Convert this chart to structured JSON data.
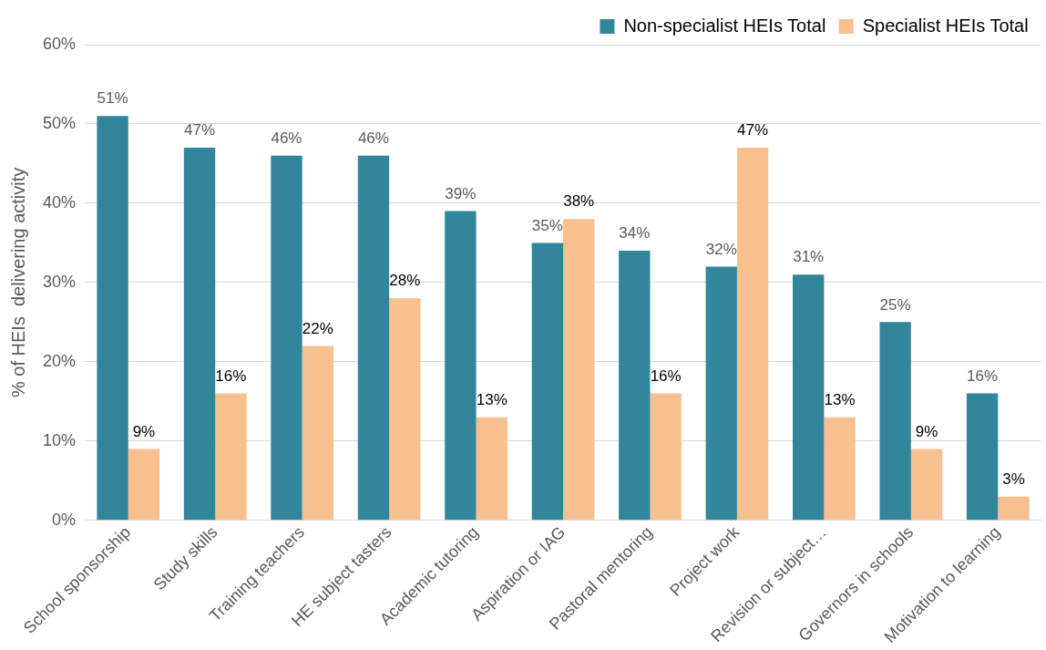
{
  "chart_data": {
    "type": "bar",
    "ylabel": "% of HEIs  delivering activity",
    "categories": [
      "School sponsorship",
      "Study skills",
      "Training teachers",
      "HE subject tasters",
      "Academic tutoring",
      "Aspiration or IAG",
      "Pastoral mentoring",
      "Project work",
      "Revision or subject…",
      "Governors in schools",
      "Motivation to learning"
    ],
    "series": [
      {
        "name": "Non-specialist HEIs Total",
        "color": "#31869b",
        "values": [
          51,
          47,
          46,
          46,
          39,
          35,
          34,
          32,
          31,
          25,
          16
        ],
        "value_labels": [
          "51%",
          "47%",
          "46%",
          "46%",
          "39%",
          "35%",
          "34%",
          "32%",
          "31%",
          "25%",
          "16%"
        ]
      },
      {
        "name": "Specialist HEIs Total",
        "color": "#f9c08f",
        "values": [
          9,
          16,
          22,
          28,
          13,
          38,
          16,
          47,
          13,
          9,
          3
        ],
        "value_labels": [
          "9%",
          "16%",
          "22%",
          "28%",
          "13%",
          "38%",
          "16%",
          "47%",
          "13%",
          "9%",
          "3%"
        ]
      }
    ],
    "ylim": [
      0,
      60
    ],
    "yticks": [
      {
        "value": 0,
        "label": "0%"
      },
      {
        "value": 10,
        "label": "10%"
      },
      {
        "value": 20,
        "label": "20%"
      },
      {
        "value": 30,
        "label": "30%"
      },
      {
        "value": 40,
        "label": "40%"
      },
      {
        "value": 50,
        "label": "50%"
      },
      {
        "value": 60,
        "label": "60%"
      }
    ],
    "grid": "y",
    "legend": "top right"
  }
}
